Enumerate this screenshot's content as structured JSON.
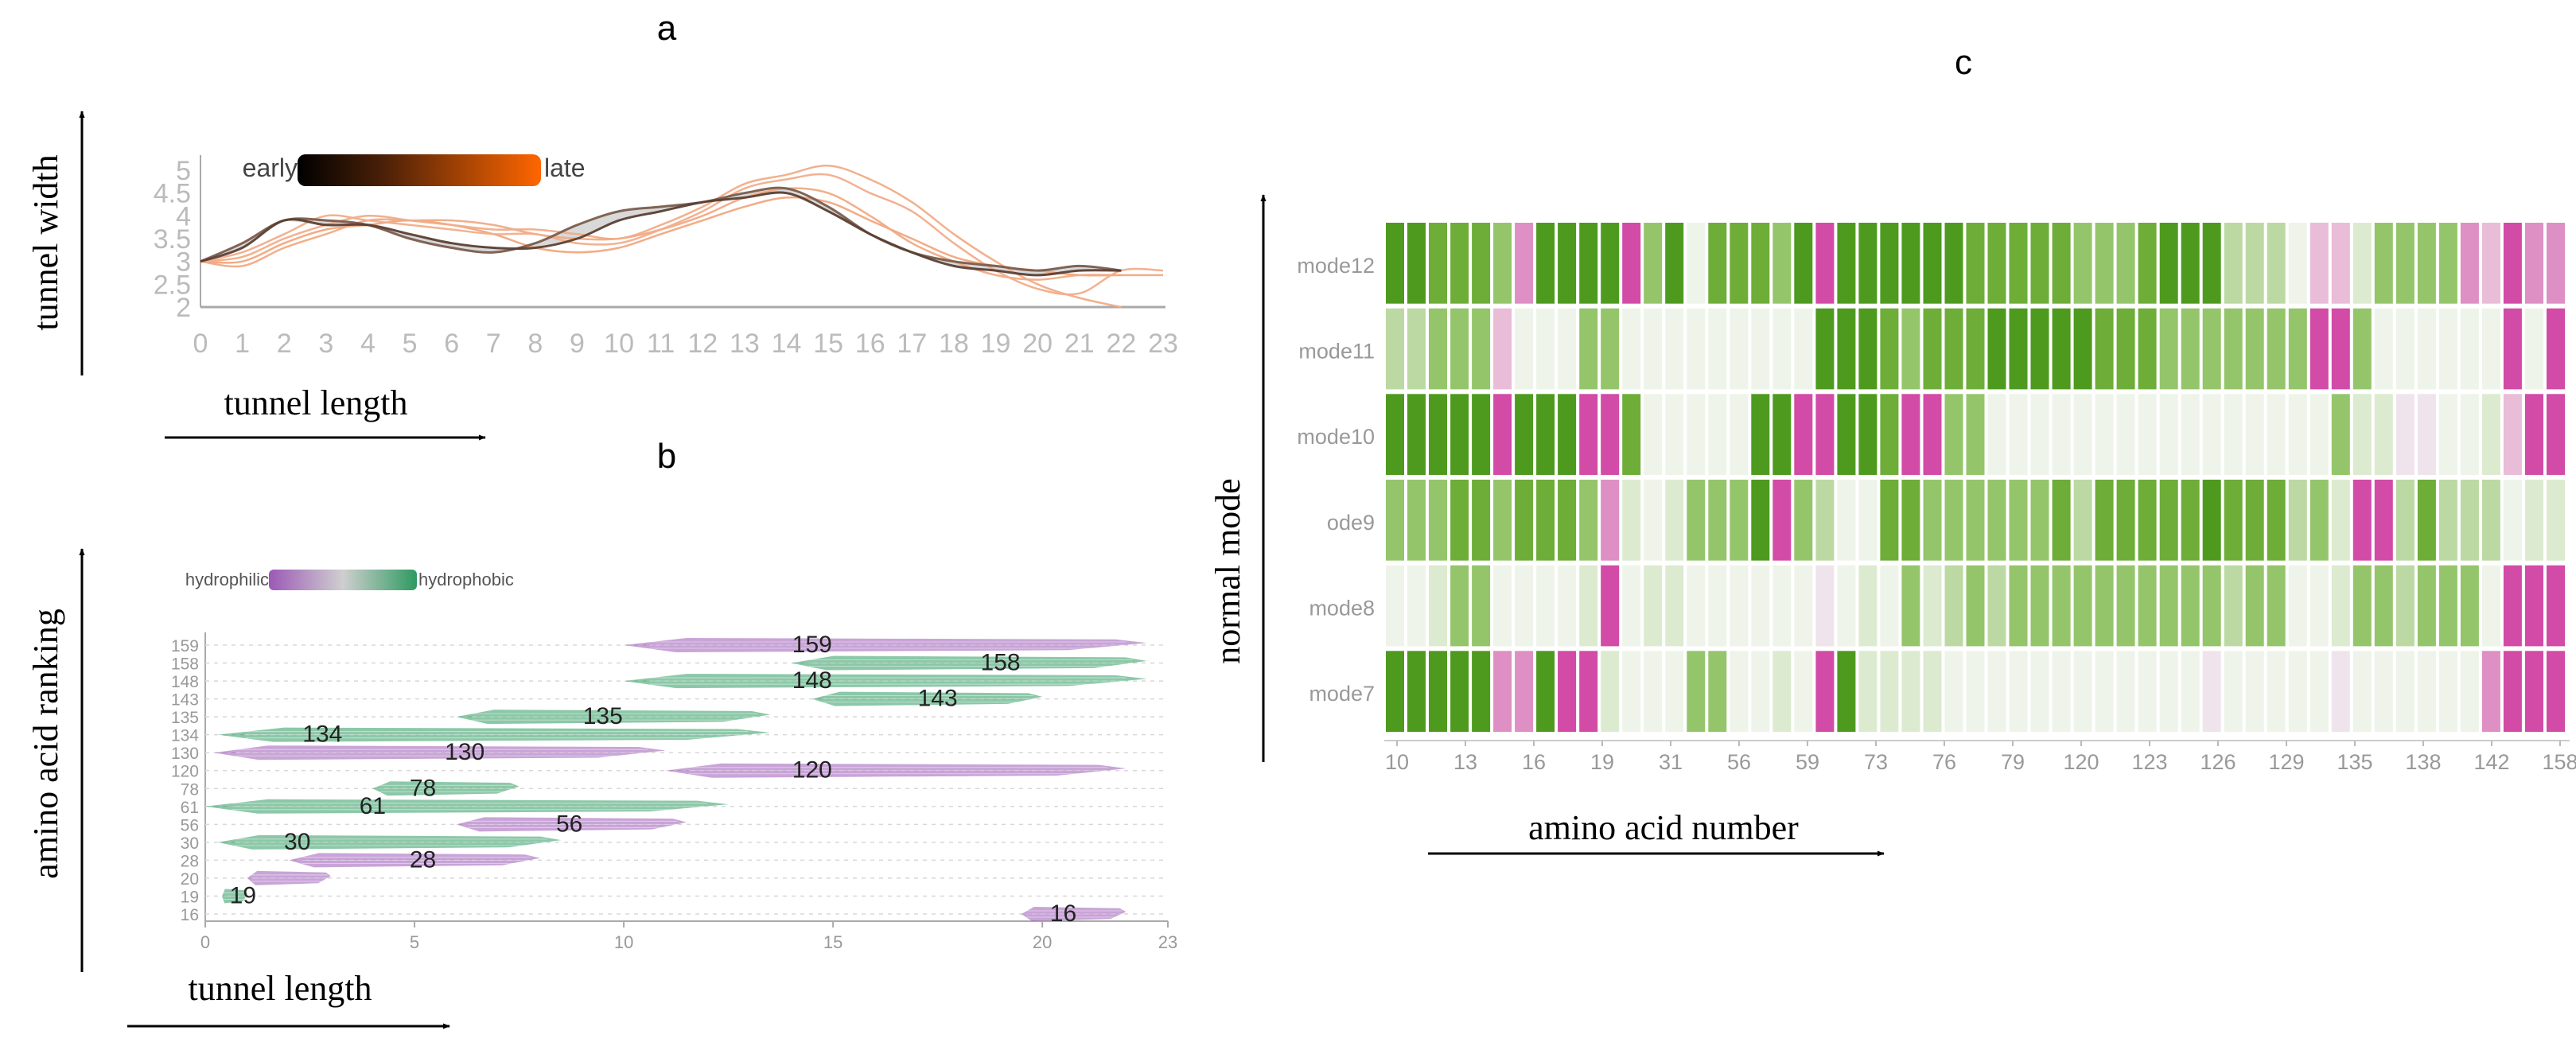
{
  "panels": {
    "a": {
      "letter": "a"
    },
    "b": {
      "letter": "b"
    },
    "c": {
      "letter": "c"
    }
  },
  "colors": {
    "early": "#000000",
    "late": "#ff6600",
    "tunnel_line": "#f2a77e",
    "tunnel_dark": "#5a4034",
    "hydrophilic": "#9b59b6",
    "hydrophobic": "#2e9a60",
    "axis_gray": "#aaaaaa"
  },
  "chart_data": [
    {
      "type": "line",
      "panel": "a",
      "ylabel": "tunnel width",
      "xlabel": "tunnel length",
      "legend": {
        "start": "early",
        "end": "late",
        "placement": "top-left"
      },
      "x_ticks": [
        0,
        1,
        2,
        3,
        4,
        5,
        6,
        7,
        8,
        9,
        10,
        11,
        12,
        13,
        14,
        15,
        16,
        17,
        18,
        19,
        20,
        21,
        22,
        23
      ],
      "y_ticks": [
        "2",
        "2.5",
        "3",
        "3.5",
        "4",
        "4.5",
        "5"
      ],
      "xlim": [
        0,
        23
      ],
      "ylim": [
        2,
        5
      ],
      "series": [
        {
          "t": 0.0,
          "x": [
            0,
            1,
            2,
            3,
            4,
            5,
            6,
            7,
            8,
            9,
            10,
            11,
            12,
            13,
            14,
            15,
            16,
            17,
            18,
            19,
            20,
            21,
            22
          ],
          "y": [
            3.0,
            3.3,
            3.9,
            3.8,
            3.8,
            3.6,
            3.4,
            3.3,
            3.3,
            3.5,
            3.9,
            4.1,
            4.3,
            4.4,
            4.5,
            4.1,
            3.6,
            3.2,
            2.9,
            2.8,
            2.7,
            2.8,
            2.8
          ]
        },
        {
          "t": 0.2,
          "x": [
            0,
            1,
            2,
            3,
            4,
            5,
            6,
            7,
            8,
            9,
            10,
            11,
            12,
            13,
            14,
            15,
            16,
            17,
            18,
            19,
            20,
            21,
            22
          ],
          "y": [
            3.0,
            3.4,
            3.9,
            3.9,
            3.8,
            3.5,
            3.3,
            3.2,
            3.4,
            3.8,
            4.1,
            4.2,
            4.3,
            4.5,
            4.6,
            4.2,
            3.6,
            3.2,
            3.0,
            2.9,
            2.8,
            2.9,
            2.8
          ]
        },
        {
          "t": 0.5,
          "x": [
            0,
            1,
            2,
            3,
            4,
            5,
            6,
            7,
            8,
            9,
            10,
            11,
            12,
            13,
            14,
            15,
            16,
            17,
            18,
            19,
            20,
            21,
            22,
            23
          ],
          "y": [
            3.0,
            3.2,
            3.6,
            4.0,
            3.9,
            3.8,
            3.7,
            3.6,
            3.6,
            3.4,
            3.4,
            3.7,
            4.1,
            4.6,
            4.8,
            4.9,
            4.5,
            4.1,
            3.4,
            2.8,
            2.4,
            2.3,
            2.8,
            2.8
          ]
        },
        {
          "t": 0.65,
          "x": [
            0,
            1,
            2,
            3,
            4,
            5,
            6,
            7,
            8,
            9,
            10,
            11,
            12,
            13,
            14,
            15,
            16,
            17,
            18,
            19,
            20,
            21,
            22
          ],
          "y": [
            3.0,
            3.1,
            3.5,
            3.8,
            4.0,
            3.9,
            3.8,
            3.7,
            3.7,
            3.6,
            3.5,
            3.8,
            4.2,
            4.7,
            4.9,
            5.1,
            4.8,
            4.3,
            3.6,
            3.0,
            2.5,
            2.2,
            2.0
          ]
        },
        {
          "t": 0.8,
          "x": [
            0,
            1,
            2,
            3,
            4,
            5,
            6,
            7,
            8,
            9,
            10,
            11,
            12,
            13,
            14,
            15,
            16,
            17,
            18,
            19,
            20,
            21,
            22,
            23
          ],
          "y": [
            3.0,
            2.9,
            3.3,
            3.6,
            3.9,
            3.9,
            3.9,
            3.8,
            3.6,
            3.5,
            3.5,
            3.7,
            4.0,
            4.4,
            4.6,
            4.5,
            4.0,
            3.4,
            3.0,
            2.7,
            2.6,
            2.7,
            2.7,
            2.7
          ]
        },
        {
          "t": 1.0,
          "x": [
            0,
            1,
            2,
            3,
            4,
            5,
            6,
            7,
            8,
            9,
            10,
            11,
            12,
            13,
            14,
            15,
            16,
            17,
            18,
            19,
            20,
            21,
            22
          ],
          "y": [
            3.0,
            3.0,
            3.4,
            3.7,
            3.8,
            3.9,
            3.8,
            3.6,
            3.3,
            3.2,
            3.3,
            3.6,
            3.9,
            4.2,
            4.4,
            4.3,
            3.9,
            3.5,
            3.1,
            2.9,
            2.8,
            2.7,
            2.7
          ]
        }
      ]
    },
    {
      "type": "bar",
      "panel": "b",
      "ylabel": "amino acid ranking",
      "xlabel": "tunnel length",
      "legend": {
        "start": "hydrophilic",
        "end": "hydrophobic",
        "placement": "top-left"
      },
      "x_ticks": [
        0,
        5,
        10,
        15,
        20,
        23
      ],
      "y_ticks": [
        "159",
        "158",
        "148",
        "143",
        "135",
        "134",
        "130",
        "120",
        "78",
        "61",
        "56",
        "30",
        "28",
        "20",
        "19",
        "16"
      ],
      "xlim": [
        0,
        23
      ],
      "residues": [
        {
          "label": "159",
          "start": 10.0,
          "end": 22.5,
          "polarity": "hydrophilic",
          "label_x": 14.5
        },
        {
          "label": "158",
          "start": 14.0,
          "end": 22.5,
          "polarity": "hydrophobic",
          "label_x": 19.0
        },
        {
          "label": "148",
          "start": 10.0,
          "end": 22.5,
          "polarity": "hydrophobic",
          "label_x": 14.5
        },
        {
          "label": "143",
          "start": 14.5,
          "end": 20.0,
          "polarity": "hydrophobic",
          "label_x": 17.5
        },
        {
          "label": "135",
          "start": 6.0,
          "end": 13.5,
          "polarity": "hydrophobic",
          "label_x": 9.5
        },
        {
          "label": "134",
          "start": 0.3,
          "end": 13.5,
          "polarity": "hydrophobic",
          "label_x": 2.8
        },
        {
          "label": "130",
          "start": 0.2,
          "end": 11.0,
          "polarity": "hydrophilic",
          "label_x": 6.2
        },
        {
          "label": "120",
          "start": 11.0,
          "end": 22.0,
          "polarity": "hydrophilic",
          "label_x": 14.5
        },
        {
          "label": "78",
          "start": 4.0,
          "end": 7.5,
          "polarity": "hydrophobic",
          "label_x": 5.2
        },
        {
          "label": "61",
          "start": 0.0,
          "end": 12.5,
          "polarity": "hydrophobic",
          "label_x": 4.0
        },
        {
          "label": "56",
          "start": 6.0,
          "end": 11.5,
          "polarity": "hydrophilic",
          "label_x": 8.7
        },
        {
          "label": "30",
          "start": 0.3,
          "end": 8.5,
          "polarity": "hydrophobic",
          "label_x": 2.2
        },
        {
          "label": "28",
          "start": 2.0,
          "end": 8.0,
          "polarity": "hydrophilic",
          "label_x": 5.2
        },
        {
          "label": "20",
          "start": 1.0,
          "end": 3.0,
          "polarity": "hydrophilic",
          "label_x": null
        },
        {
          "label": "19",
          "start": 0.4,
          "end": 1.0,
          "polarity": "hydrophobic",
          "label_x": 0.9
        },
        {
          "label": "16",
          "start": 19.5,
          "end": 22.0,
          "polarity": "hydrophilic",
          "label_x": 20.5
        }
      ]
    },
    {
      "type": "heatmap",
      "panel": "c",
      "ylabel": "normal mode",
      "xlabel": "amino acid number",
      "rows": [
        "mode12",
        "mode11",
        "mode10",
        "ode9",
        "mode8",
        "mode7"
      ],
      "x_tick_labels": [
        "10",
        "13",
        "16",
        "19",
        "31",
        "56",
        "59",
        "73",
        "76",
        "79",
        "120",
        "123",
        "126",
        "129",
        "135",
        "138",
        "142",
        "158"
      ],
      "palette": {
        "0": "#4e9a1e",
        "1": "#6ead38",
        "2": "#95c56b",
        "3": "#bcd9a3",
        "4": "#dcebd0",
        "5": "#eef4ea",
        "6": "#f0e4ec",
        "7": "#e9bcd8",
        "8": "#de8fc3",
        "9": "#d24ba6"
      },
      "codes": [
        "0011128000092051112090000001111122210003335774222287988",
        "3322275552255555555500012111000001112222222992555555959",
        "0000090009915555500990019922555555555555555524466554799",
        "2221121112845422209235511222222131111101113249931333544",
        "5542255554954455555565452432322222222223225542232225999",
        "0000088099455522554590444455555555555565555565555558999"
      ]
    }
  ]
}
